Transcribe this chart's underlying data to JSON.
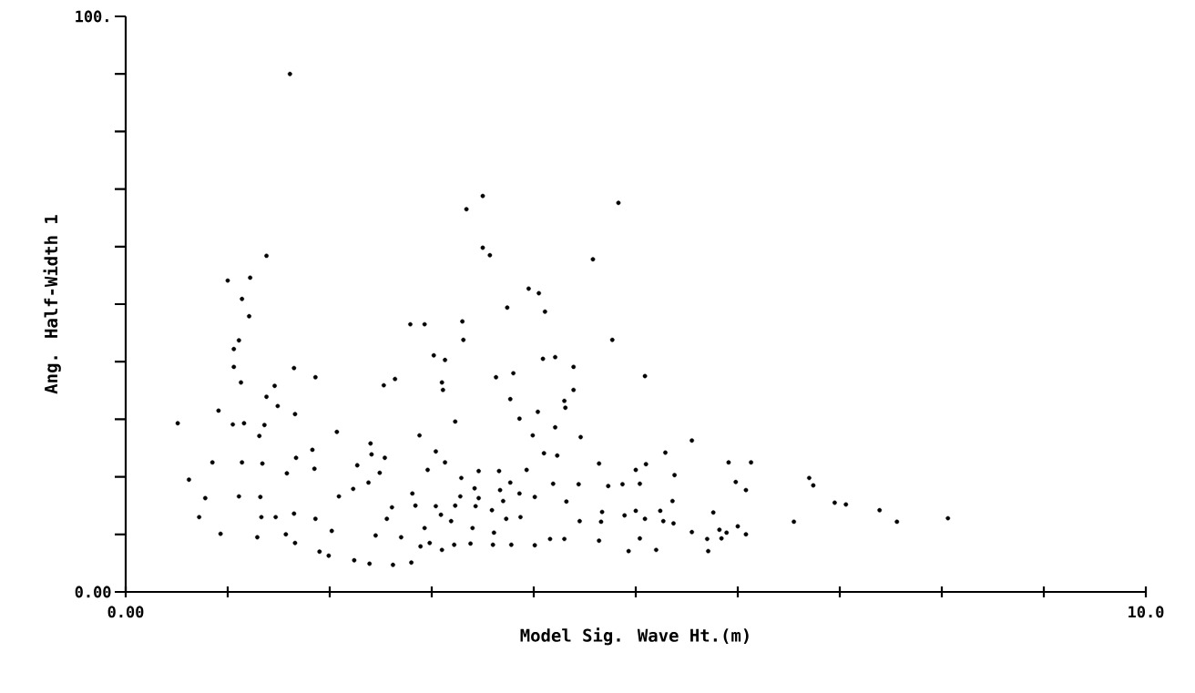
{
  "chart_data": {
    "type": "scatter",
    "xlabel": "Model Sig. Wave Ht.(m)",
    "ylabel": "Ang. Half-Width 1",
    "color": "#000000",
    "marker": "circle",
    "xlim": [
      0,
      10
    ],
    "ylim": [
      0,
      100
    ],
    "xticks": [
      {
        "value": 0,
        "label": "0.00"
      },
      {
        "value": 1,
        "label": null
      },
      {
        "value": 2,
        "label": null
      },
      {
        "value": 3,
        "label": null
      },
      {
        "value": 4,
        "label": null
      },
      {
        "value": 5,
        "label": null
      },
      {
        "value": 6,
        "label": null
      },
      {
        "value": 7,
        "label": null
      },
      {
        "value": 8,
        "label": null
      },
      {
        "value": 9,
        "label": null
      },
      {
        "value": 10,
        "label": "10.0"
      }
    ],
    "yticks": [
      {
        "value": 0,
        "label": "0.00"
      },
      {
        "value": 10,
        "label": null
      },
      {
        "value": 20,
        "label": null
      },
      {
        "value": 30,
        "label": null
      },
      {
        "value": 40,
        "label": null
      },
      {
        "value": 50,
        "label": null
      },
      {
        "value": 60,
        "label": null
      },
      {
        "value": 70,
        "label": null
      },
      {
        "value": 80,
        "label": null
      },
      {
        "value": 90,
        "label": null
      },
      {
        "value": 100,
        "label": "100."
      }
    ],
    "x": [
      1.61,
      3.5,
      3.34,
      4.83,
      3.5,
      3.57,
      4.58,
      1.38,
      1.22,
      1.0,
      1.14,
      1.21,
      3.95,
      4.05,
      3.74,
      4.11,
      2.79,
      2.93,
      3.3,
      3.31,
      4.77,
      1.11,
      1.06,
      1.06,
      3.02,
      3.13,
      4.21,
      4.09,
      1.65,
      1.86,
      1.13,
      2.53,
      2.64,
      3.1,
      3.11,
      3.63,
      3.8,
      4.39,
      4.39,
      1.46,
      1.38,
      1.36,
      0.91,
      1.05,
      1.16,
      0.51,
      3.86,
      3.77,
      4.04,
      4.3,
      3.23,
      2.88,
      2.07,
      5.09,
      4.46,
      3.99,
      1.83,
      5.55,
      2.4,
      3.04,
      4.1,
      5.91,
      6.13,
      5.98,
      6.08,
      6.7,
      6.74,
      6.95,
      7.06,
      7.39,
      7.56,
      8.06,
      6.55,
      0.85,
      0.62,
      0.72,
      1.33,
      5.29,
      5.1,
      5.0,
      5.38,
      1.14,
      1.34,
      0.78,
      1.11,
      1.32,
      0.93,
      1.29,
      1.47,
      1.65,
      1.57,
      1.66,
      1.86,
      2.02,
      1.9,
      1.99,
      2.24,
      2.39,
      2.62,
      2.8,
      1.58,
      1.85,
      2.27,
      2.23,
      2.09,
      2.41,
      2.54,
      2.49,
      2.38,
      2.96,
      3.13,
      3.29,
      3.46,
      3.66,
      3.93,
      3.77,
      3.42,
      3.67,
      3.46,
      3.7,
      3.86,
      4.01,
      3.28,
      2.81,
      2.61,
      2.84,
      3.04,
      3.23,
      3.43,
      3.59,
      3.73,
      3.87,
      3.61,
      3.4,
      3.19,
      3.09,
      3.22,
      3.38,
      3.78,
      2.98,
      2.93,
      2.7,
      2.89,
      3.1,
      3.6,
      4.01,
      4.16,
      2.45,
      2.56,
      4.31,
      4.21,
      4.23,
      4.19,
      4.44,
      4.32,
      4.45,
      4.3,
      4.64,
      4.73,
      4.87,
      5.04,
      5.36,
      5.24,
      5.0,
      4.67,
      4.66,
      4.64,
      4.89,
      5.09,
      5.04,
      5.27,
      5.37,
      5.55,
      5.82,
      5.76,
      6.0,
      6.08,
      5.7,
      4.93,
      5.2,
      5.71,
      5.89,
      5.84,
      1.49,
      1.66,
      1.31,
      1.67
    ],
    "values": [
      90.0,
      68.8,
      66.5,
      67.6,
      59.8,
      58.5,
      57.8,
      58.4,
      54.6,
      54.1,
      50.9,
      47.9,
      52.7,
      51.9,
      49.4,
      48.7,
      46.5,
      46.5,
      47.0,
      43.8,
      43.8,
      43.7,
      42.2,
      39.1,
      41.1,
      40.3,
      40.8,
      40.5,
      38.9,
      37.3,
      36.4,
      35.9,
      37.0,
      36.4,
      35.1,
      37.3,
      38.0,
      39.1,
      35.1,
      35.8,
      33.9,
      29.0,
      31.5,
      29.1,
      29.3,
      29.3,
      30.1,
      33.5,
      31.3,
      33.2,
      29.6,
      27.2,
      27.8,
      37.5,
      26.9,
      27.2,
      24.7,
      26.3,
      25.8,
      24.4,
      24.1,
      22.5,
      22.5,
      19.1,
      17.7,
      19.8,
      18.5,
      15.5,
      15.2,
      14.2,
      12.2,
      12.8,
      12.2,
      22.5,
      19.5,
      13.0,
      13.0,
      24.2,
      22.2,
      21.2,
      20.3,
      22.5,
      22.3,
      16.3,
      16.6,
      16.5,
      10.1,
      9.5,
      13.0,
      13.6,
      10.0,
      8.5,
      12.7,
      10.6,
      7.0,
      6.3,
      5.5,
      4.9,
      4.7,
      5.1,
      20.6,
      21.4,
      22.0,
      17.9,
      16.6,
      23.9,
      23.3,
      20.7,
      19.0,
      21.2,
      22.5,
      19.8,
      21.0,
      21.0,
      21.2,
      19.0,
      18.0,
      17.7,
      16.3,
      15.8,
      17.1,
      16.5,
      16.6,
      17.1,
      14.7,
      15.0,
      14.9,
      15.0,
      14.9,
      14.2,
      12.7,
      13.0,
      10.3,
      11.1,
      12.3,
      13.4,
      8.2,
      8.4,
      8.2,
      8.5,
      11.1,
      9.5,
      7.9,
      7.3,
      8.2,
      8.1,
      9.2,
      9.8,
      12.7,
      32.0,
      28.6,
      23.7,
      18.8,
      18.7,
      15.7,
      12.3,
      9.2,
      22.3,
      18.4,
      18.7,
      18.8,
      15.8,
      14.1,
      14.1,
      13.9,
      12.2,
      8.9,
      13.3,
      12.7,
      9.3,
      12.3,
      11.9,
      10.4,
      10.8,
      13.8,
      11.4,
      10.0,
      9.2,
      7.1,
      7.3,
      7.1,
      10.3,
      9.3,
      32.3,
      30.9,
      27.1,
      23.3
    ]
  }
}
